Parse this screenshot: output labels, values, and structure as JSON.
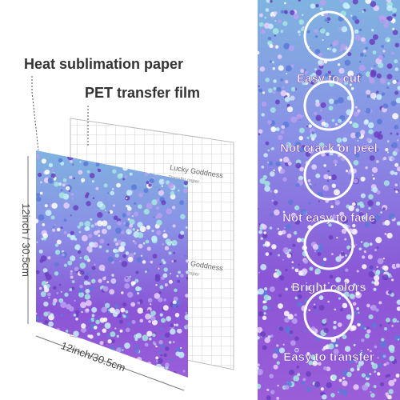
{
  "labels": {
    "paper": "Heat sublimation paper",
    "film": "PET transfer film",
    "height": "12inch / 30.5cm",
    "width": "12inch/30.5cm"
  },
  "sheet_brand": [
    {
      "brand": "Lucky Goddness",
      "caption": "Transfer paper"
    },
    {
      "brand": "Lucky Goddness",
      "caption": "Transfer paper"
    }
  ],
  "features": [
    "Easy to cut",
    "Not crack or peel",
    "Not easy to fade",
    "Bright colors",
    "Easy to transfer"
  ]
}
